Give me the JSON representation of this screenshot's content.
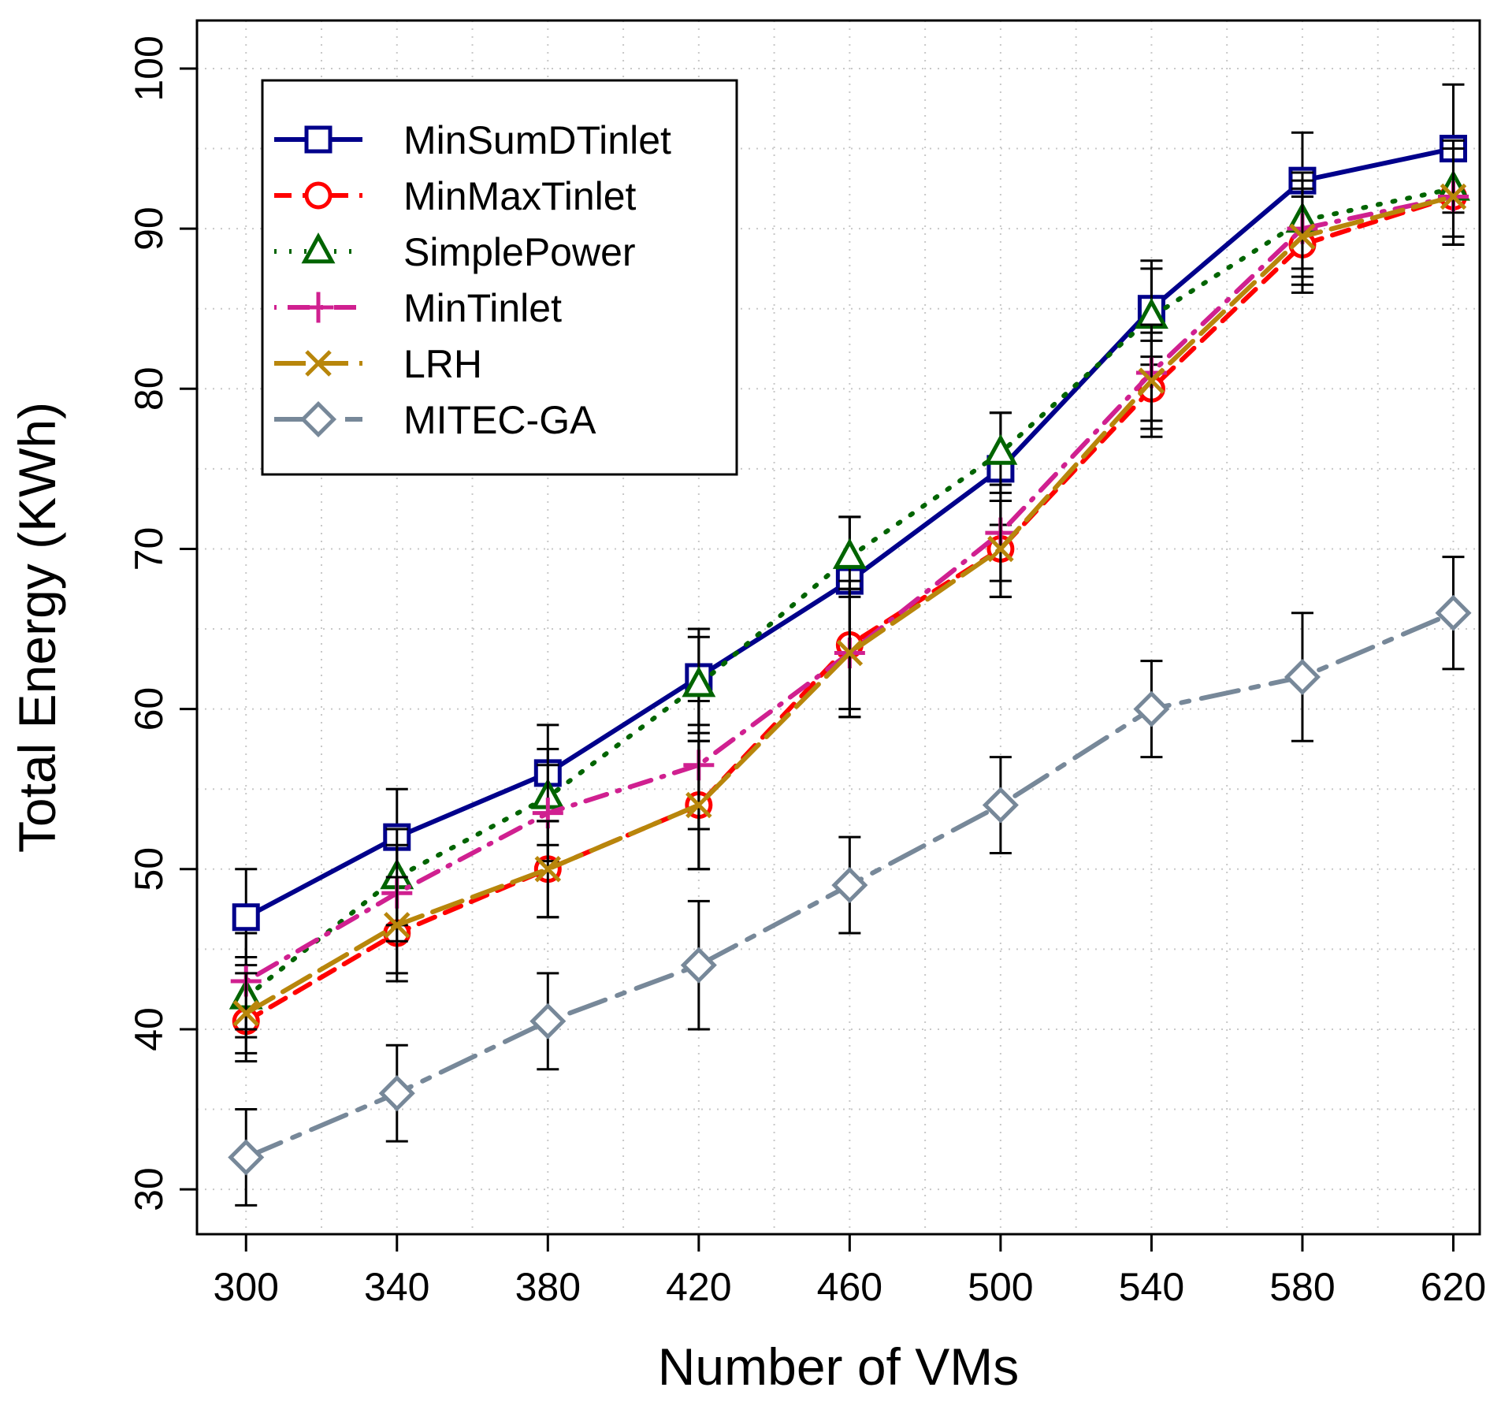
{
  "chart_data": {
    "type": "line",
    "title": "",
    "xlabel": "Number of VMs",
    "ylabel": "Total Energy (KWh)",
    "x": [
      300,
      340,
      380,
      420,
      460,
      500,
      540,
      580,
      620
    ],
    "xticks": [
      "300",
      "340",
      "380",
      "420",
      "460",
      "500",
      "540",
      "580",
      "620"
    ],
    "yticks": [
      "30",
      "40",
      "50",
      "60",
      "70",
      "80",
      "90",
      "100"
    ],
    "xlim": [
      287,
      627
    ],
    "ylim": [
      27.2,
      103
    ],
    "grid": true,
    "legend_position": "top-left",
    "series": [
      {
        "name": "MinSumDTinlet",
        "color": "#00008B",
        "marker": "square",
        "line": "solid",
        "values": [
          47,
          52,
          56,
          62,
          68,
          75,
          85,
          93,
          95
        ],
        "error": [
          3,
          3,
          3,
          3,
          4,
          3.5,
          3,
          3,
          4
        ]
      },
      {
        "name": "MinMaxTinlet",
        "color": "#FF0000",
        "marker": "circle",
        "line": "dashed",
        "values": [
          40.5,
          46,
          50,
          54,
          64,
          70,
          80,
          89,
          92
        ],
        "error": [
          2.5,
          3,
          3,
          4,
          4,
          3,
          3,
          3,
          3
        ]
      },
      {
        "name": "SimplePower",
        "color": "#006400",
        "marker": "triangle",
        "line": "dotted",
        "values": [
          42,
          49.5,
          54.5,
          61.5,
          69.5,
          76,
          84.5,
          90.5,
          92.5
        ],
        "error": [
          2.5,
          3,
          3,
          3,
          2.5,
          2.5,
          3,
          3,
          3
        ]
      },
      {
        "name": "MinTinlet",
        "color": "#D02090",
        "marker": "plus",
        "line": "dotdash",
        "values": [
          43,
          48.5,
          53.5,
          56.5,
          63.5,
          71,
          81,
          90,
          92
        ],
        "error": [
          3,
          3,
          3,
          4,
          4,
          3,
          3,
          3,
          3
        ]
      },
      {
        "name": "LRH",
        "color": "#B8860B",
        "marker": "cross",
        "line": "longdash",
        "values": [
          41,
          46.5,
          50,
          54,
          63.5,
          70,
          80.5,
          89.5,
          92
        ],
        "error": [
          2.5,
          3,
          3,
          4,
          4,
          3,
          3,
          3,
          3
        ]
      },
      {
        "name": "MITEC-GA",
        "color": "#778899",
        "marker": "diamond",
        "line": "twodash",
        "values": [
          32,
          36,
          40.5,
          44,
          49,
          54,
          60,
          62,
          66
        ],
        "error": [
          3,
          3,
          3,
          4,
          3,
          3,
          3,
          4,
          3.5
        ]
      }
    ]
  }
}
